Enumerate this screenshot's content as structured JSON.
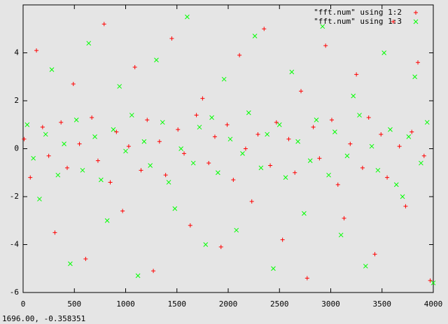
{
  "chart_data": {
    "type": "scatter",
    "xlim": [
      0,
      4000
    ],
    "xticks": [
      0,
      500,
      1000,
      1500,
      2000,
      2500,
      3000,
      3500,
      4000
    ],
    "ylim": [
      -6,
      6
    ],
    "yticks": [
      -6,
      -4,
      -2,
      0,
      2,
      4
    ],
    "legend": "top-right",
    "series": [
      {
        "name": "\"fft.num\" using 1:2",
        "color": "#ff0000",
        "marker": "plus",
        "x": [
          10,
          70,
          130,
          190,
          250,
          310,
          370,
          430,
          490,
          550,
          610,
          670,
          730,
          790,
          850,
          910,
          970,
          1030,
          1090,
          1150,
          1210,
          1270,
          1330,
          1390,
          1450,
          1510,
          1570,
          1630,
          1690,
          1750,
          1810,
          1870,
          1930,
          1990,
          2050,
          2110,
          2170,
          2230,
          2290,
          2350,
          2410,
          2470,
          2530,
          2590,
          2650,
          2710,
          2770,
          2830,
          2890,
          2950,
          3010,
          3070,
          3130,
          3190,
          3250,
          3310,
          3370,
          3430,
          3490,
          3550,
          3610,
          3670,
          3730,
          3790,
          3850,
          3910,
          3970
        ],
        "values": [
          0.4,
          -1.2,
          4.1,
          0.9,
          -0.3,
          -3.5,
          1.1,
          -0.8,
          2.7,
          0.2,
          -4.6,
          1.3,
          -0.5,
          5.2,
          -1.4,
          0.7,
          -2.6,
          0.1,
          3.4,
          -0.9,
          1.2,
          -5.1,
          0.3,
          -1.1,
          4.6,
          0.8,
          -0.2,
          -3.2,
          1.4,
          2.1,
          -0.6,
          0.5,
          -4.1,
          1.0,
          -1.3,
          3.9,
          0.0,
          -2.2,
          0.6,
          5.0,
          -0.7,
          1.1,
          -3.8,
          0.4,
          -1.0,
          2.4,
          -5.4,
          0.9,
          -0.4,
          4.3,
          1.2,
          -1.5,
          -2.9,
          0.2,
          3.1,
          -0.8,
          1.3,
          -4.4,
          0.6,
          -1.2,
          5.3,
          0.1,
          -2.4,
          0.7,
          3.6,
          -0.3,
          -5.5
        ]
      },
      {
        "name": "\"fft.num\" using 1:3",
        "color": "#00ff00",
        "marker": "cross",
        "x": [
          40,
          100,
          160,
          220,
          280,
          340,
          400,
          460,
          520,
          580,
          640,
          700,
          760,
          820,
          880,
          940,
          1000,
          1060,
          1120,
          1180,
          1240,
          1300,
          1360,
          1420,
          1480,
          1540,
          1600,
          1660,
          1720,
          1780,
          1840,
          1900,
          1960,
          2020,
          2080,
          2140,
          2200,
          2260,
          2320,
          2380,
          2440,
          2500,
          2560,
          2620,
          2680,
          2740,
          2800,
          2860,
          2920,
          2980,
          3040,
          3100,
          3160,
          3220,
          3280,
          3340,
          3400,
          3460,
          3520,
          3580,
          3640,
          3700,
          3760,
          3820,
          3880,
          3940,
          4000
        ],
        "values": [
          1.0,
          -0.4,
          -2.1,
          0.6,
          3.3,
          -1.1,
          0.2,
          -4.8,
          1.2,
          -0.9,
          4.4,
          0.5,
          -1.3,
          -3.0,
          0.8,
          2.6,
          -0.1,
          1.4,
          -5.3,
          0.3,
          -0.7,
          3.7,
          1.1,
          -1.4,
          -2.5,
          0.0,
          5.5,
          -0.6,
          0.9,
          -4.0,
          1.3,
          -1.0,
          2.9,
          0.4,
          -3.4,
          -0.2,
          1.5,
          4.7,
          -0.8,
          0.6,
          -5.0,
          1.0,
          -1.2,
          3.2,
          0.3,
          -2.7,
          -0.5,
          1.2,
          5.1,
          -1.1,
          0.7,
          -3.6,
          -0.3,
          2.2,
          1.4,
          -4.9,
          0.1,
          -0.9,
          4.0,
          0.8,
          -1.5,
          -2.0,
          0.5,
          3.0,
          -0.6,
          1.1,
          -5.6
        ]
      }
    ],
    "status_text": "1696.00, -0.358351"
  }
}
